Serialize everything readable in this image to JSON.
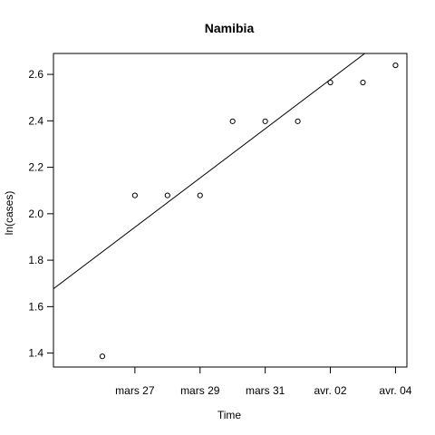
{
  "chart_data": {
    "type": "scatter",
    "title": "Namibia",
    "xlabel": "Time",
    "ylabel": "ln(cases)",
    "x": [
      "2020-03-26",
      "2020-03-27",
      "2020-03-28",
      "2020-03-29",
      "2020-03-30",
      "2020-03-31",
      "2020-04-01",
      "2020-04-02",
      "2020-04-03",
      "2020-04-04"
    ],
    "y": [
      1.386,
      2.079,
      2.079,
      2.079,
      2.398,
      2.398,
      2.398,
      2.565,
      2.565,
      2.639
    ],
    "xticks": [
      {
        "date": "2020-03-27",
        "label": "mars 27"
      },
      {
        "date": "2020-03-29",
        "label": "mars 29"
      },
      {
        "date": "2020-03-31",
        "label": "mars 31"
      },
      {
        "date": "2020-04-02",
        "label": "avr. 02"
      },
      {
        "date": "2020-04-04",
        "label": "avr. 04"
      }
    ],
    "yticks": [
      {
        "value": 1.4,
        "label": "1.4"
      },
      {
        "value": 1.6,
        "label": "1.6"
      },
      {
        "value": 1.8,
        "label": "1.8"
      },
      {
        "value": 2.0,
        "label": "2.0"
      },
      {
        "value": 2.2,
        "label": "2.2"
      },
      {
        "value": 2.4,
        "label": "2.4"
      },
      {
        "value": 2.6,
        "label": "2.6"
      }
    ],
    "xlim": [
      "2020-03-25",
      "2020-04-04"
    ],
    "ylim": [
      1.34,
      2.69
    ],
    "fit_line": {
      "x": [
        "2020-03-25",
        "2020-04-04"
      ],
      "y": [
        1.73,
        2.79
      ]
    },
    "grid": false,
    "legend": "none"
  }
}
